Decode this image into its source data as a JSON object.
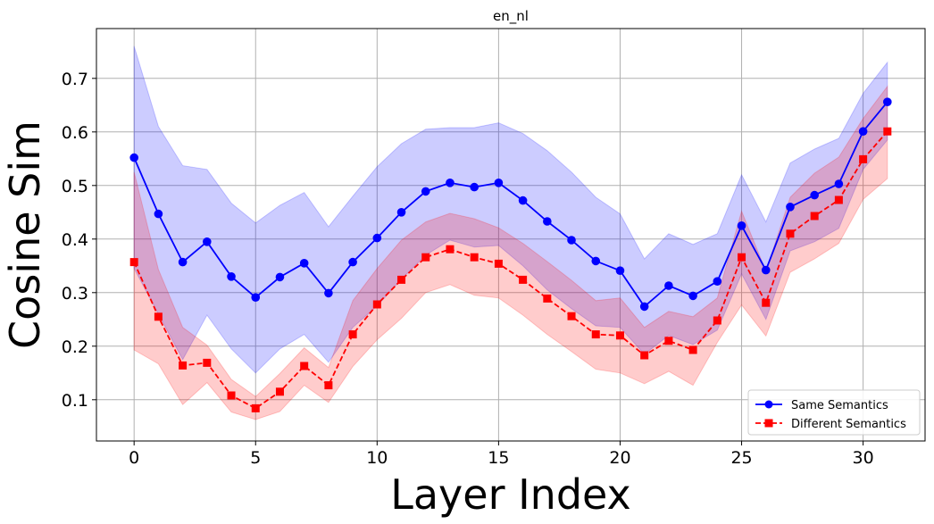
{
  "chart_data": {
    "type": "line",
    "title": "en_nl",
    "xlabel": "Layer Index",
    "ylabel": "Cosine Sim",
    "xlim": [
      -1.55,
      32.55
    ],
    "ylim": [
      0.023,
      0.793
    ],
    "xticks": [
      0,
      5,
      10,
      15,
      20,
      25,
      30
    ],
    "yticks": [
      0.1,
      0.2,
      0.3,
      0.4,
      0.5,
      0.6,
      0.7
    ],
    "grid": true,
    "legend_position": "lower right",
    "x": [
      0,
      1,
      2,
      3,
      4,
      5,
      6,
      7,
      8,
      9,
      10,
      11,
      12,
      13,
      14,
      15,
      16,
      17,
      18,
      19,
      20,
      21,
      22,
      23,
      24,
      25,
      26,
      27,
      28,
      29,
      30,
      31
    ],
    "series": [
      {
        "name": "Same Semantics",
        "color": "#0000ff",
        "band_color": "#0000ff",
        "line_style": "solid",
        "marker": "circle",
        "values": [
          0.552,
          0.447,
          0.357,
          0.395,
          0.33,
          0.291,
          0.329,
          0.355,
          0.299,
          0.357,
          0.402,
          0.45,
          0.489,
          0.505,
          0.497,
          0.505,
          0.472,
          0.433,
          0.398,
          0.359,
          0.341,
          0.274,
          0.313,
          0.294,
          0.321,
          0.425,
          0.342,
          0.46,
          0.482,
          0.503,
          0.601,
          0.656
        ],
        "lower": [
          0.345,
          0.26,
          0.175,
          0.258,
          0.195,
          0.15,
          0.195,
          0.222,
          0.17,
          0.235,
          0.275,
          0.325,
          0.37,
          0.398,
          0.385,
          0.388,
          0.35,
          0.305,
          0.27,
          0.238,
          0.235,
          0.185,
          0.22,
          0.203,
          0.23,
          0.335,
          0.25,
          0.378,
          0.395,
          0.42,
          0.53,
          0.585
        ],
        "upper": [
          0.76,
          0.61,
          0.537,
          0.53,
          0.467,
          0.43,
          0.463,
          0.487,
          0.423,
          0.48,
          0.535,
          0.578,
          0.605,
          0.608,
          0.608,
          0.617,
          0.597,
          0.565,
          0.525,
          0.478,
          0.447,
          0.363,
          0.41,
          0.39,
          0.41,
          0.52,
          0.432,
          0.542,
          0.568,
          0.588,
          0.672,
          0.73
        ]
      },
      {
        "name": "Different Semantics",
        "color": "#ff0000",
        "band_color": "#ff0000",
        "line_style": "dashed",
        "marker": "square",
        "values": [
          0.357,
          0.255,
          0.164,
          0.169,
          0.108,
          0.084,
          0.115,
          0.163,
          0.127,
          0.222,
          0.278,
          0.324,
          0.366,
          0.381,
          0.366,
          0.354,
          0.324,
          0.289,
          0.256,
          0.222,
          0.22,
          0.183,
          0.21,
          0.193,
          0.248,
          0.366,
          0.281,
          0.41,
          0.443,
          0.473,
          0.549,
          0.601
        ],
        "lower": [
          0.193,
          0.167,
          0.091,
          0.132,
          0.077,
          0.063,
          0.078,
          0.127,
          0.095,
          0.162,
          0.212,
          0.252,
          0.3,
          0.315,
          0.295,
          0.29,
          0.258,
          0.222,
          0.19,
          0.157,
          0.15,
          0.13,
          0.153,
          0.127,
          0.207,
          0.277,
          0.219,
          0.338,
          0.363,
          0.392,
          0.474,
          0.513
        ],
        "upper": [
          0.525,
          0.343,
          0.235,
          0.202,
          0.138,
          0.106,
          0.149,
          0.197,
          0.16,
          0.285,
          0.345,
          0.398,
          0.432,
          0.448,
          0.438,
          0.421,
          0.392,
          0.358,
          0.323,
          0.285,
          0.29,
          0.235,
          0.265,
          0.255,
          0.29,
          0.452,
          0.34,
          0.478,
          0.523,
          0.553,
          0.625,
          0.685
        ]
      }
    ]
  }
}
